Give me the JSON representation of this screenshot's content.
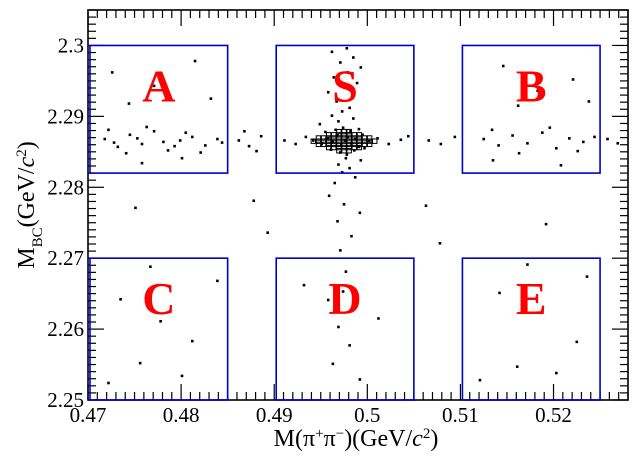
{
  "chart_data": {
    "type": "scatter",
    "title": "",
    "xlabel": "M(π⁺π⁻)(GeV/c²)",
    "ylabel": "M_BC(GeV/c²)",
    "xlim": [
      0.47,
      0.528
    ],
    "ylim": [
      2.25,
      2.305
    ],
    "x_ticks": [
      0.47,
      0.48,
      0.49,
      0.5,
      0.51,
      0.52
    ],
    "x_tick_labels": [
      "0.47",
      "0.48",
      "0.49",
      "0.5",
      "0.51",
      "0.52"
    ],
    "y_ticks": [
      2.25,
      2.26,
      2.27,
      2.28,
      2.29,
      2.3
    ],
    "y_tick_labels": [
      "2.25",
      "2.26",
      "2.27",
      "2.28",
      "2.29",
      "2.3"
    ],
    "grid": false,
    "legend": "none",
    "box_color": "#0000cc",
    "label_color": "#ff0000",
    "regions": [
      {
        "label": "A",
        "x": [
          0.47,
          0.485
        ],
        "y": [
          2.282,
          2.3
        ]
      },
      {
        "label": "S",
        "x": [
          0.49,
          0.505
        ],
        "y": [
          2.282,
          2.3
        ]
      },
      {
        "label": "B",
        "x": [
          0.51,
          0.525
        ],
        "y": [
          2.282,
          2.3
        ]
      },
      {
        "label": "C",
        "x": [
          0.47,
          0.485
        ],
        "y": [
          2.25,
          2.27
        ]
      },
      {
        "label": "D",
        "x": [
          0.49,
          0.505
        ],
        "y": [
          2.25,
          2.27
        ]
      },
      {
        "label": "E",
        "x": [
          0.51,
          0.525
        ],
        "y": [
          2.25,
          2.27
        ]
      }
    ],
    "signal_peak": {
      "x": 0.4975,
      "y": 2.2865
    },
    "points": [
      [
        0.4718,
        2.2868
      ],
      [
        0.4732,
        2.2857
      ],
      [
        0.4745,
        2.2874
      ],
      [
        0.4758,
        2.2861
      ],
      [
        0.4771,
        2.2879
      ],
      [
        0.4786,
        2.2852
      ],
      [
        0.4799,
        2.2866
      ],
      [
        0.4812,
        2.2871
      ],
      [
        0.4826,
        2.2859
      ],
      [
        0.4839,
        2.2868
      ],
      [
        0.4722,
        2.2881
      ],
      [
        0.4741,
        2.2848
      ],
      [
        0.4763,
        2.2885
      ],
      [
        0.4781,
        2.2864
      ],
      [
        0.4805,
        2.2877
      ],
      [
        0.4821,
        2.2849
      ],
      [
        0.4844,
        2.2863
      ],
      [
        0.4728,
        2.2863
      ],
      [
        0.4753,
        2.2869
      ],
      [
        0.4793,
        2.2858
      ],
      [
        0.4862,
        2.2866
      ],
      [
        0.4873,
        2.2858
      ],
      [
        0.4886,
        2.2872
      ],
      [
        0.4868,
        2.2879
      ],
      [
        0.4881,
        2.2851
      ],
      [
        0.4911,
        2.2866
      ],
      [
        0.4923,
        2.2861
      ],
      [
        0.4934,
        2.2871
      ],
      [
        0.4942,
        2.2866
      ],
      [
        0.4951,
        2.2861
      ],
      [
        0.4958,
        2.2869
      ],
      [
        0.4963,
        2.2864
      ],
      [
        0.4968,
        2.2873
      ],
      [
        0.4972,
        2.2859
      ],
      [
        0.4976,
        2.2866
      ],
      [
        0.4979,
        2.2871
      ],
      [
        0.4983,
        2.2862
      ],
      [
        0.4987,
        2.2868
      ],
      [
        0.4991,
        2.2857
      ],
      [
        0.4995,
        2.2874
      ],
      [
        0.5002,
        2.2865
      ],
      [
        0.5011,
        2.2869
      ],
      [
        0.5023,
        2.2861
      ],
      [
        0.5036,
        2.2867
      ],
      [
        0.5044,
        2.2872
      ],
      [
        0.4955,
        2.2878
      ],
      [
        0.4961,
        2.2853
      ],
      [
        0.4966,
        2.2881
      ],
      [
        0.4971,
        2.2849
      ],
      [
        0.4974,
        2.2884
      ],
      [
        0.4978,
        2.2846
      ],
      [
        0.4982,
        2.2879
      ],
      [
        0.4986,
        2.2852
      ],
      [
        0.4991,
        2.2882
      ],
      [
        0.4997,
        2.2855
      ],
      [
        0.4949,
        2.2889
      ],
      [
        0.4969,
        2.2893
      ],
      [
        0.4977,
        2.2841
      ],
      [
        0.4985,
        2.2897
      ],
      [
        0.4993,
        2.2838
      ],
      [
        0.4962,
        2.2901
      ],
      [
        0.4973,
        2.2907
      ],
      [
        0.4981,
        2.2912
      ],
      [
        0.4967,
        2.2921
      ],
      [
        0.4984,
        2.2928
      ],
      [
        0.4958,
        2.2934
      ],
      [
        0.4976,
        2.2941
      ],
      [
        0.4989,
        2.2947
      ],
      [
        0.4964,
        2.2955
      ],
      [
        0.4979,
        2.2962
      ],
      [
        0.4993,
        2.2969
      ],
      [
        0.4971,
        2.2976
      ],
      [
        0.4985,
        2.2983
      ],
      [
        0.4962,
        2.2991
      ],
      [
        0.4978,
        2.2996
      ],
      [
        0.4969,
        2.2832
      ],
      [
        0.4981,
        2.2827
      ],
      [
        0.4973,
        2.2821
      ],
      [
        0.4987,
        2.2814
      ],
      [
        0.4965,
        2.2806
      ],
      [
        0.5125,
        2.2868
      ],
      [
        0.5141,
        2.2859
      ],
      [
        0.5156,
        2.2873
      ],
      [
        0.5172,
        2.2862
      ],
      [
        0.5188,
        2.2877
      ],
      [
        0.5203,
        2.2855
      ],
      [
        0.5217,
        2.2869
      ],
      [
        0.5232,
        2.2864
      ],
      [
        0.5244,
        2.2871
      ],
      [
        0.5134,
        2.2881
      ],
      [
        0.5163,
        2.2848
      ],
      [
        0.5196,
        2.2884
      ],
      [
        0.5226,
        2.2851
      ],
      [
        0.5066,
        2.2866
      ],
      [
        0.5079,
        2.2861
      ],
      [
        0.5094,
        2.2871
      ],
      [
        0.5258,
        2.2868
      ],
      [
        0.5269,
        2.2862
      ],
      [
        0.4726,
        2.2962
      ],
      [
        0.4771,
        2.2943
      ],
      [
        0.4815,
        2.2978
      ],
      [
        0.4744,
        2.2918
      ],
      [
        0.4832,
        2.2925
      ],
      [
        0.4758,
        2.2834
      ],
      [
        0.4801,
        2.2841
      ],
      [
        0.5146,
        2.2971
      ],
      [
        0.5183,
        2.2936
      ],
      [
        0.5221,
        2.2952
      ],
      [
        0.5162,
        2.2915
      ],
      [
        0.5238,
        2.2921
      ],
      [
        0.5135,
        2.2838
      ],
      [
        0.5208,
        2.2831
      ],
      [
        0.4735,
        2.2642
      ],
      [
        0.4778,
        2.2611
      ],
      [
        0.4812,
        2.2583
      ],
      [
        0.4756,
        2.2552
      ],
      [
        0.4839,
        2.2668
      ],
      [
        0.4722,
        2.2524
      ],
      [
        0.4801,
        2.2534
      ],
      [
        0.4767,
        2.2688
      ],
      [
        0.4932,
        2.2662
      ],
      [
        0.4958,
        2.2641
      ],
      [
        0.4974,
        2.2653
      ],
      [
        0.4986,
        2.2628
      ],
      [
        0.4969,
        2.2603
      ],
      [
        0.4981,
        2.2577
      ],
      [
        0.4963,
        2.2551
      ],
      [
        0.4992,
        2.2529
      ],
      [
        0.4977,
        2.2681
      ],
      [
        0.5012,
        2.2615
      ],
      [
        0.5142,
        2.2651
      ],
      [
        0.5186,
        2.2623
      ],
      [
        0.5225,
        2.2582
      ],
      [
        0.5161,
        2.2547
      ],
      [
        0.5236,
        2.2674
      ],
      [
        0.5121,
        2.2528
      ],
      [
        0.5203,
        2.2538
      ],
      [
        0.5172,
        2.2691
      ],
      [
        0.4975,
        2.2776
      ],
      [
        0.4968,
        2.2752
      ],
      [
        0.4983,
        2.2731
      ],
      [
        0.4971,
        2.2711
      ],
      [
        0.4959,
        2.2788
      ],
      [
        0.4992,
        2.2764
      ],
      [
        0.4878,
        2.2781
      ],
      [
        0.4893,
        2.2736
      ],
      [
        0.5063,
        2.2774
      ],
      [
        0.5078,
        2.2721
      ],
      [
        0.4751,
        2.2771
      ],
      [
        0.5192,
        2.2748
      ]
    ],
    "region_labels": [
      "A",
      "S",
      "B",
      "C",
      "D",
      "E"
    ]
  }
}
